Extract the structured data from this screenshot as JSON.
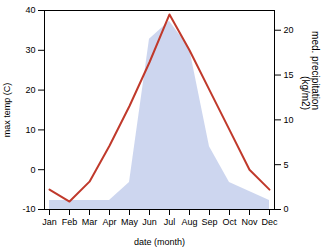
{
  "chart_data": {
    "type": "line",
    "xlabel": "date (month)",
    "ylabel": "max temp (C)",
    "y2label": "med. precipitation\n(kg/m2)",
    "categories": [
      "Jan",
      "Feb",
      "Mar",
      "Apr",
      "May",
      "Jun",
      "Jul",
      "Aug",
      "Sep",
      "Oct",
      "Nov",
      "Dec"
    ],
    "series": [
      {
        "type": "area",
        "axis": "y2",
        "color": "#b8c4e8",
        "values": [
          1,
          1,
          1,
          1,
          3,
          19,
          21,
          18,
          7,
          3,
          2,
          1
        ]
      },
      {
        "type": "line",
        "color": "#c0392b",
        "values": [
          -5,
          -8,
          -3,
          6,
          16,
          27,
          39,
          30,
          20,
          10,
          0,
          -5
        ]
      }
    ],
    "ylim": [
      -10,
      40
    ],
    "yticks": [
      -10,
      0,
      10,
      20,
      30,
      40
    ],
    "y2lim": [
      0,
      22.2
    ],
    "y2ticks": [
      0,
      5,
      10,
      15,
      20
    ]
  }
}
